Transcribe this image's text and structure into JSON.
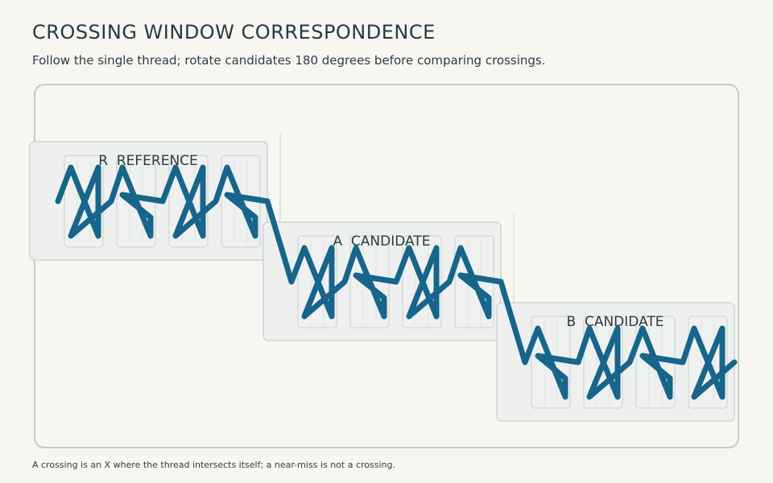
{
  "title": "CROSSING WINDOW CORRESPONDENCE",
  "subtitle": "Follow the single thread; rotate candidates 180 degrees before comparing crossings.",
  "footnote": "A crossing is an X where the thread intersects itself; a near-miss is not a crossing.",
  "panels": [
    {
      "label": "R  REFERENCE"
    },
    {
      "label": "A  CANDIDATE"
    },
    {
      "label": "B  CANDIDATE"
    }
  ],
  "colors": {
    "thread": "#17658a",
    "panel_fill": "#edf0ef",
    "panel_stroke": "#cfd6d6",
    "cell_stroke": "#c9d0d0",
    "frame_stroke": "#c3cbcc"
  }
}
